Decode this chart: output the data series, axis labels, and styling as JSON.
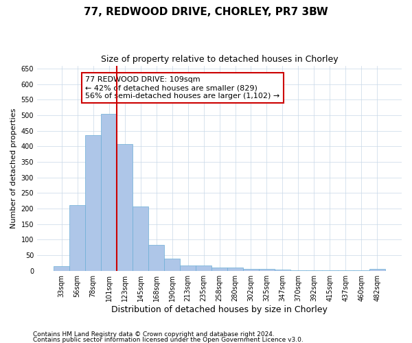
{
  "title": "77, REDWOOD DRIVE, CHORLEY, PR7 3BW",
  "subtitle": "Size of property relative to detached houses in Chorley",
  "xlabel": "Distribution of detached houses by size in Chorley",
  "ylabel": "Number of detached properties",
  "categories": [
    "33sqm",
    "56sqm",
    "78sqm",
    "101sqm",
    "123sqm",
    "145sqm",
    "168sqm",
    "190sqm",
    "213sqm",
    "235sqm",
    "258sqm",
    "280sqm",
    "302sqm",
    "325sqm",
    "347sqm",
    "370sqm",
    "392sqm",
    "415sqm",
    "437sqm",
    "460sqm",
    "482sqm"
  ],
  "values": [
    15,
    212,
    436,
    504,
    407,
    207,
    84,
    38,
    18,
    18,
    10,
    10,
    5,
    5,
    3,
    2,
    2,
    2,
    1,
    1,
    5
  ],
  "bar_color": "#aec6e8",
  "bar_edge_color": "#6baed6",
  "vline_x_index": 3.5,
  "vline_color": "#cc0000",
  "annotation_text": "77 REDWOOD DRIVE: 109sqm\n← 42% of detached houses are smaller (829)\n56% of semi-detached houses are larger (1,102) →",
  "annotation_box_color": "#ffffff",
  "annotation_box_edge": "#cc0000",
  "ylim": [
    0,
    660
  ],
  "yticks": [
    0,
    50,
    100,
    150,
    200,
    250,
    300,
    350,
    400,
    450,
    500,
    550,
    600,
    650
  ],
  "footer_line1": "Contains HM Land Registry data © Crown copyright and database right 2024.",
  "footer_line2": "Contains public sector information licensed under the Open Government Licence v3.0.",
  "background_color": "#ffffff",
  "grid_color": "#c8d8e8",
  "title_fontsize": 11,
  "subtitle_fontsize": 9,
  "ylabel_fontsize": 8,
  "xlabel_fontsize": 9,
  "tick_fontsize": 7,
  "annotation_fontsize": 8,
  "footer_fontsize": 6.5
}
